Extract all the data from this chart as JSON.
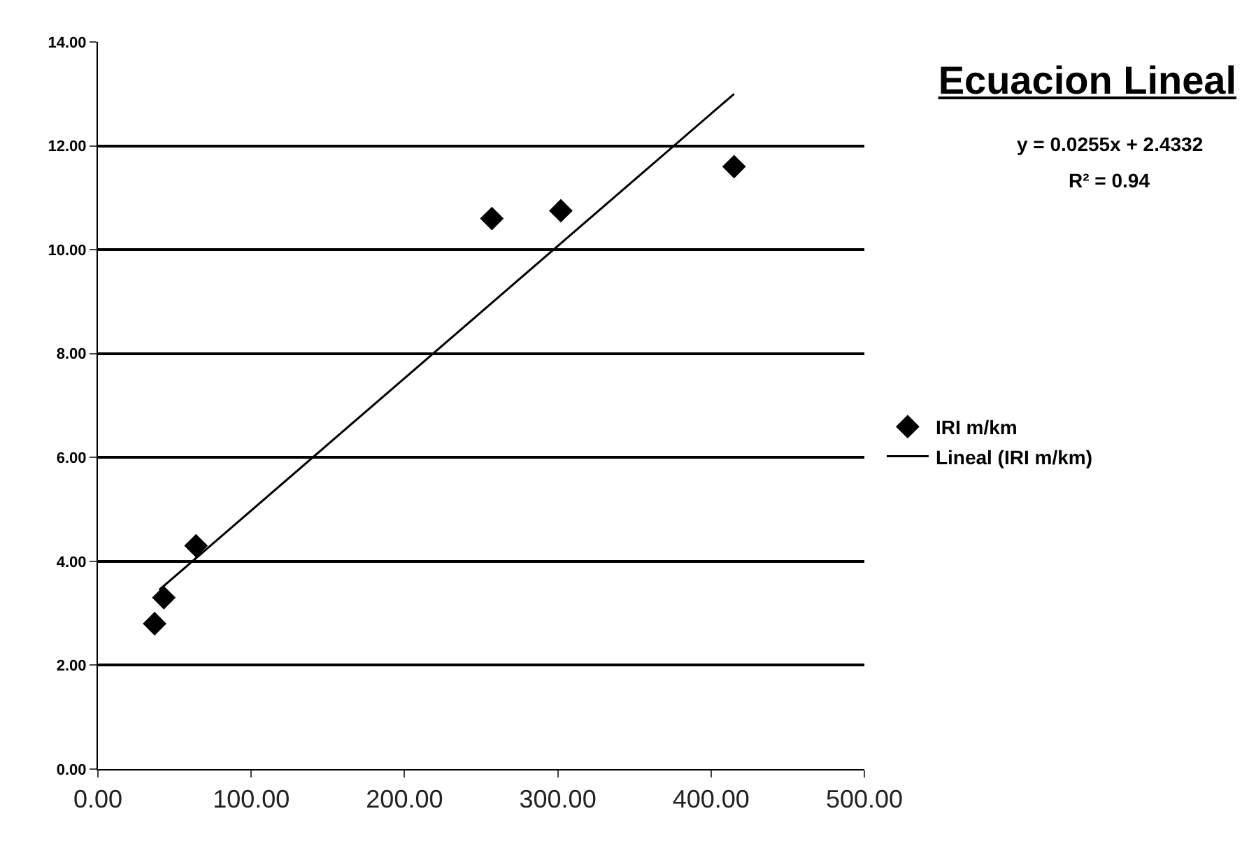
{
  "chart_data": {
    "type": "scatter",
    "title": "Ecuacion Lineal",
    "annotations": [
      "y = 0.0255x + 2.4332",
      "R² = 0.94"
    ],
    "series": [
      {
        "name": "IRI m/km",
        "color": "#000000",
        "x": [
          37,
          43,
          64,
          257,
          302,
          415
        ],
        "values": [
          2.8,
          3.3,
          4.3,
          10.6,
          10.75,
          11.6
        ],
        "marker": "diamond"
      },
      {
        "name": "Lineal (IRI m/km)",
        "type": "line",
        "color": "#000000",
        "x": [
          40,
          415
        ],
        "values": [
          3.45,
          13.0
        ],
        "marker": "none"
      }
    ],
    "xlim": [
      0,
      500
    ],
    "xticks": [
      {
        "value": 0,
        "label": "0.00"
      },
      {
        "value": 100,
        "label": "100.00"
      },
      {
        "value": 200,
        "label": "200.00"
      },
      {
        "value": 300,
        "label": "300.00"
      },
      {
        "value": 400,
        "label": "400.00"
      },
      {
        "value": 500,
        "label": "500.00"
      }
    ],
    "ylim": [
      0,
      14
    ],
    "yticks": [
      {
        "value": 0,
        "label": "0.00"
      },
      {
        "value": 2,
        "label": "2.00"
      },
      {
        "value": 4,
        "label": "4.00"
      },
      {
        "value": 6,
        "label": "6.00"
      },
      {
        "value": 8,
        "label": "8.00"
      },
      {
        "value": 10,
        "label": "10.00"
      },
      {
        "value": 12,
        "label": "12.00"
      },
      {
        "value": 14,
        "label": "14.00"
      }
    ],
    "grid": "y",
    "legend": "right"
  }
}
